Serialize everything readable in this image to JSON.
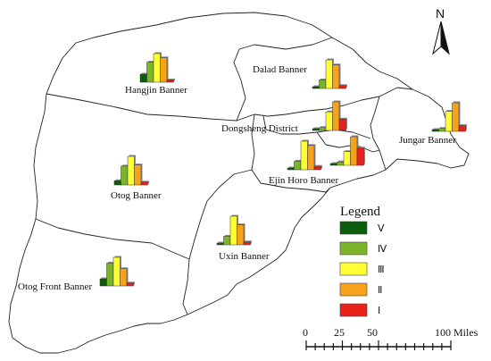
{
  "colors": {
    "V": "#0b5d0b",
    "IV": "#7ab52a",
    "III": "#ffff33",
    "II": "#f7a21a",
    "I": "#e8221b"
  },
  "regions": [
    {
      "name": "Hangjin Banner",
      "chart": [
        0.28,
        0.7,
        1.0,
        0.85,
        0.08
      ]
    },
    {
      "name": "Dalad Banner",
      "chart": [
        0.06,
        0.3,
        1.0,
        0.82,
        0.1
      ]
    },
    {
      "name": "Dongsheng District",
      "chart": [
        0.04,
        0.1,
        0.65,
        1.0,
        0.4
      ]
    },
    {
      "name": "Jungar Banner",
      "chart": [
        0.04,
        0.1,
        0.7,
        1.0,
        0.2
      ]
    },
    {
      "name": "Ejin Horo Banner",
      "chart": [
        0.06,
        0.3,
        1.0,
        0.85,
        0.12
      ]
    },
    {
      "name": "",
      "chart": [
        0.04,
        0.12,
        0.48,
        1.0,
        0.6
      ]
    },
    {
      "name": "Otog Banner",
      "chart": [
        0.15,
        0.66,
        1.0,
        0.7,
        0.1
      ]
    },
    {
      "name": "Uxin Banner",
      "chart": [
        0.05,
        0.3,
        1.0,
        0.7,
        0.1
      ]
    },
    {
      "name": "Otog Front Banner",
      "chart": [
        0.25,
        0.8,
        1.0,
        0.6,
        0.1
      ]
    }
  ],
  "legend": {
    "title": "Legend",
    "items": [
      {
        "key": "V",
        "label": "Ⅴ"
      },
      {
        "key": "IV",
        "label": "Ⅳ"
      },
      {
        "key": "III",
        "label": "Ⅲ"
      },
      {
        "key": "II",
        "label": "Ⅱ"
      },
      {
        "key": "I",
        "label": "Ⅰ"
      }
    ]
  },
  "north": {
    "label": "N"
  },
  "scale": {
    "ticks": [
      "0",
      "25",
      "50",
      "100 Miles"
    ]
  }
}
